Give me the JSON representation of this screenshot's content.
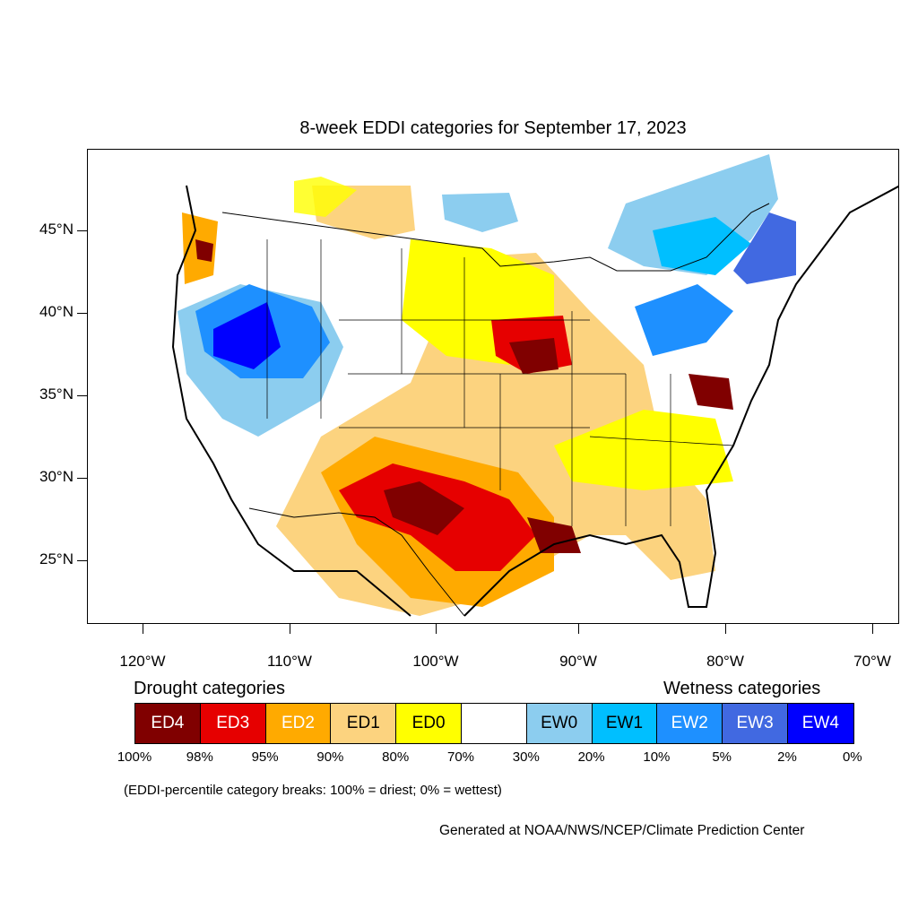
{
  "title": "8-week EDDI categories for September 17, 2023",
  "y_axis": {
    "ticks": [
      "45°N",
      "40°N",
      "35°N",
      "30°N",
      "25°N"
    ]
  },
  "x_axis": {
    "ticks": [
      "120°W",
      "110°W",
      "100°W",
      "90°W",
      "80°W",
      "70°W"
    ]
  },
  "legend": {
    "drought_heading": "Drought categories",
    "wetness_heading": "Wetness categories",
    "categories": [
      {
        "label": "ED4",
        "color": "#800000",
        "text_color": "#ffffff"
      },
      {
        "label": "ED3",
        "color": "#e60000",
        "text_color": "#ffffff"
      },
      {
        "label": "ED2",
        "color": "#ffaa00",
        "text_color": "#ffffff"
      },
      {
        "label": "ED1",
        "color": "#fcd37f",
        "text_color": "#000000"
      },
      {
        "label": "ED0",
        "color": "#ffff00",
        "text_color": "#000000"
      },
      {
        "label": "",
        "color": "#ffffff",
        "text_color": "#000000"
      },
      {
        "label": "EW0",
        "color": "#8ccdef",
        "text_color": "#000000"
      },
      {
        "label": "EW1",
        "color": "#00bfff",
        "text_color": "#000000"
      },
      {
        "label": "EW2",
        "color": "#1e90ff",
        "text_color": "#ffffff"
      },
      {
        "label": "EW3",
        "color": "#4169e1",
        "text_color": "#ffffff"
      },
      {
        "label": "EW4",
        "color": "#0000ff",
        "text_color": "#ffffff"
      }
    ],
    "percentiles": [
      "100%",
      "98%",
      "95%",
      "90%",
      "80%",
      "70%",
      "30%",
      "20%",
      "10%",
      "5%",
      "2%",
      "0%"
    ]
  },
  "note": "(EDDI-percentile category breaks: 100% = driest; 0% = wettest)",
  "credit": "Generated at NOAA/NWS/NCEP/Climate Prediction Center",
  "map_regions": [
    {
      "name": "texas-ed3",
      "category": "ED3"
    },
    {
      "name": "iowa-ed4",
      "category": "ED4"
    },
    {
      "name": "great-basin-ew4",
      "category": "EW4"
    },
    {
      "name": "southern-plains-ed1",
      "category": "ED1"
    }
  ]
}
